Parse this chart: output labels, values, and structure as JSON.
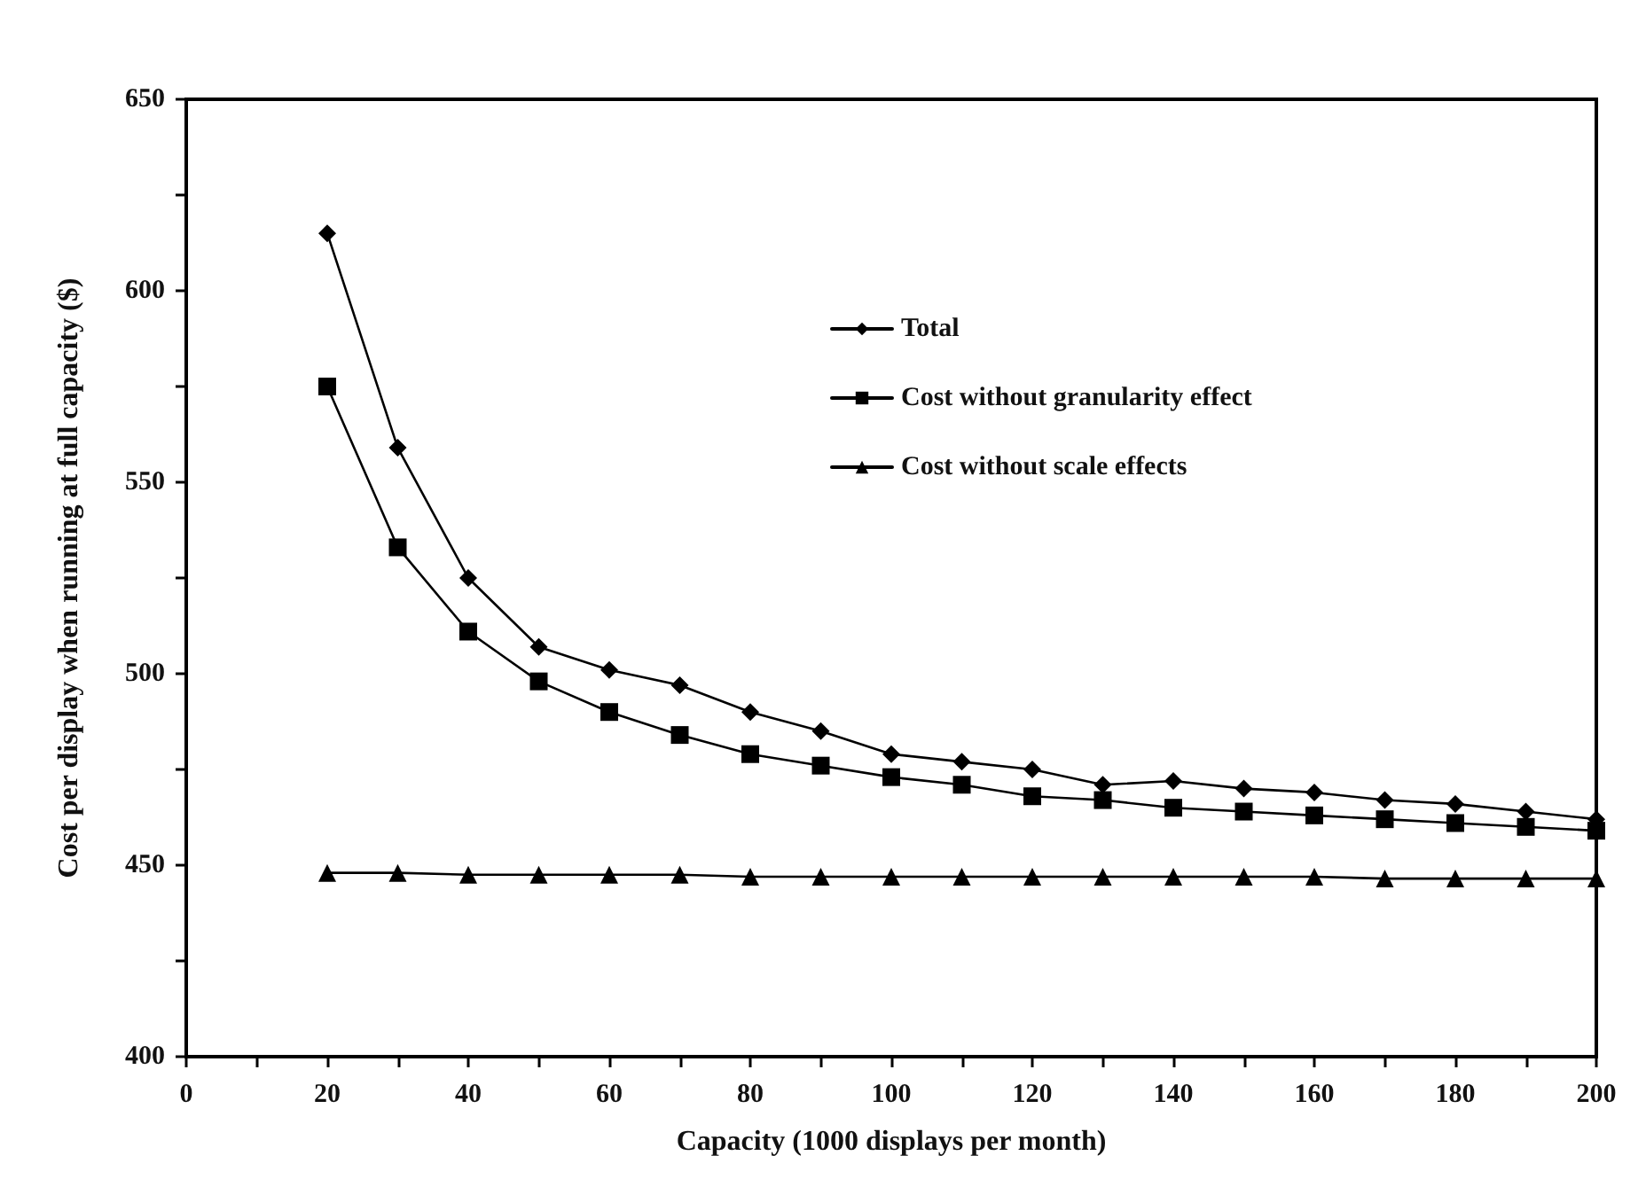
{
  "chart_data": {
    "type": "line",
    "xlabel": "Capacity (1000 displays per month)",
    "ylabel": "Cost per display when running at full capacity ($)",
    "x": [
      20,
      30,
      40,
      50,
      60,
      70,
      80,
      90,
      100,
      110,
      120,
      130,
      140,
      150,
      160,
      170,
      180,
      190,
      200
    ],
    "series": [
      {
        "name": "Total",
        "color": "#000000",
        "marker": "diamond",
        "values": [
          615,
          559,
          525,
          507,
          501,
          497,
          490,
          485,
          479,
          477,
          475,
          471,
          472,
          470,
          469,
          467,
          466,
          464,
          462
        ]
      },
      {
        "name": "Cost without granularity effect",
        "color": "#000000",
        "marker": "square",
        "values": [
          575,
          533,
          511,
          498,
          490,
          484,
          479,
          476,
          473,
          471,
          468,
          467,
          465,
          464,
          463,
          462,
          461,
          460,
          459
        ]
      },
      {
        "name": "Cost without scale effects",
        "color": "#000000",
        "marker": "triangle",
        "values": [
          448,
          448,
          447.5,
          447.5,
          447.5,
          447.5,
          447,
          447,
          447,
          447,
          447,
          447,
          447,
          447,
          447,
          446.5,
          446.5,
          446.5,
          446.5
        ]
      }
    ],
    "xlim": [
      0,
      200
    ],
    "xticks": [
      0,
      20,
      40,
      60,
      80,
      100,
      120,
      140,
      160,
      180,
      200
    ],
    "ylim": [
      400,
      650
    ],
    "yticks": [
      400,
      450,
      500,
      550,
      600,
      650
    ],
    "grid": false,
    "legend": "right",
    "line_style": "solid"
  }
}
